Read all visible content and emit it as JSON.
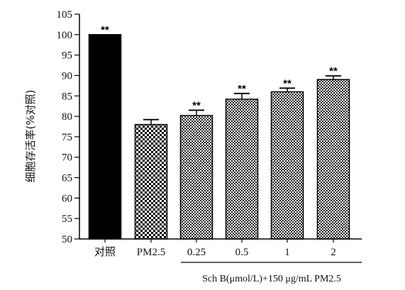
{
  "chart_data": {
    "type": "bar",
    "title": "",
    "xlabel": "",
    "ylabel": "细胞存活率(%对照)",
    "ylim": [
      50,
      105
    ],
    "yticks": [
      50,
      55,
      60,
      65,
      70,
      75,
      80,
      85,
      90,
      95,
      100,
      105
    ],
    "grid": false,
    "categories": [
      "对照",
      "PM2.5",
      "0.25",
      "0.5",
      "1",
      "2"
    ],
    "values": [
      100,
      78,
      80.2,
      84.2,
      86,
      89
    ],
    "errors": [
      0,
      1.2,
      1.3,
      1.4,
      0.9,
      0.9
    ],
    "significance": [
      "**",
      "",
      "**",
      "**",
      "**",
      "**"
    ],
    "fills": [
      "solid-black",
      "checker",
      "dots",
      "dots",
      "dots",
      "dots"
    ],
    "group_label": "Sch B(μmol/L)+150 μg/mL PM2.5",
    "group_categories": [
      "0.25",
      "0.5",
      "1",
      "2"
    ],
    "colors": {
      "bar": "#000000",
      "background": "#ffffff"
    }
  }
}
